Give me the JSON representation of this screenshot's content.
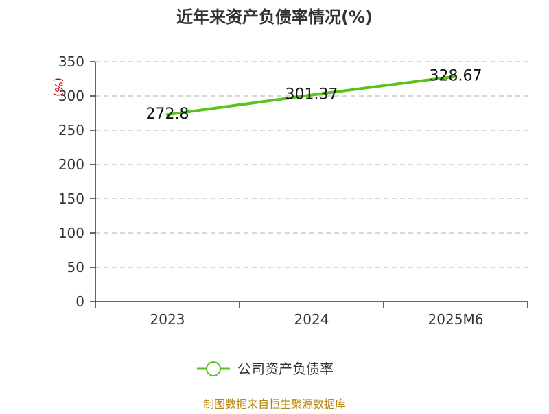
{
  "chart_data": {
    "type": "line",
    "title": "近年来资产负债率情况(%)",
    "ylabel": "(%)",
    "xlabel": "",
    "categories": [
      "2023",
      "2024",
      "2025M6"
    ],
    "series": [
      {
        "name": "公司资产负债率",
        "values": [
          272.8,
          301.37,
          328.67
        ],
        "color": "#5ac11f"
      }
    ],
    "data_labels": [
      "272.8",
      "301.37",
      "328.67"
    ],
    "ylim": [
      0,
      350
    ],
    "yticks": [
      0,
      50,
      100,
      150,
      200,
      250,
      300,
      350
    ],
    "grid": true,
    "legend_position": "bottom"
  },
  "colors": {
    "line": "#5ac11f",
    "axis": "#333333",
    "grid": "#cccccc",
    "ylabel": "#cc0000",
    "footer": "#b8860b"
  },
  "footer": {
    "source": "制图数据来自恒生聚源数据库"
  }
}
